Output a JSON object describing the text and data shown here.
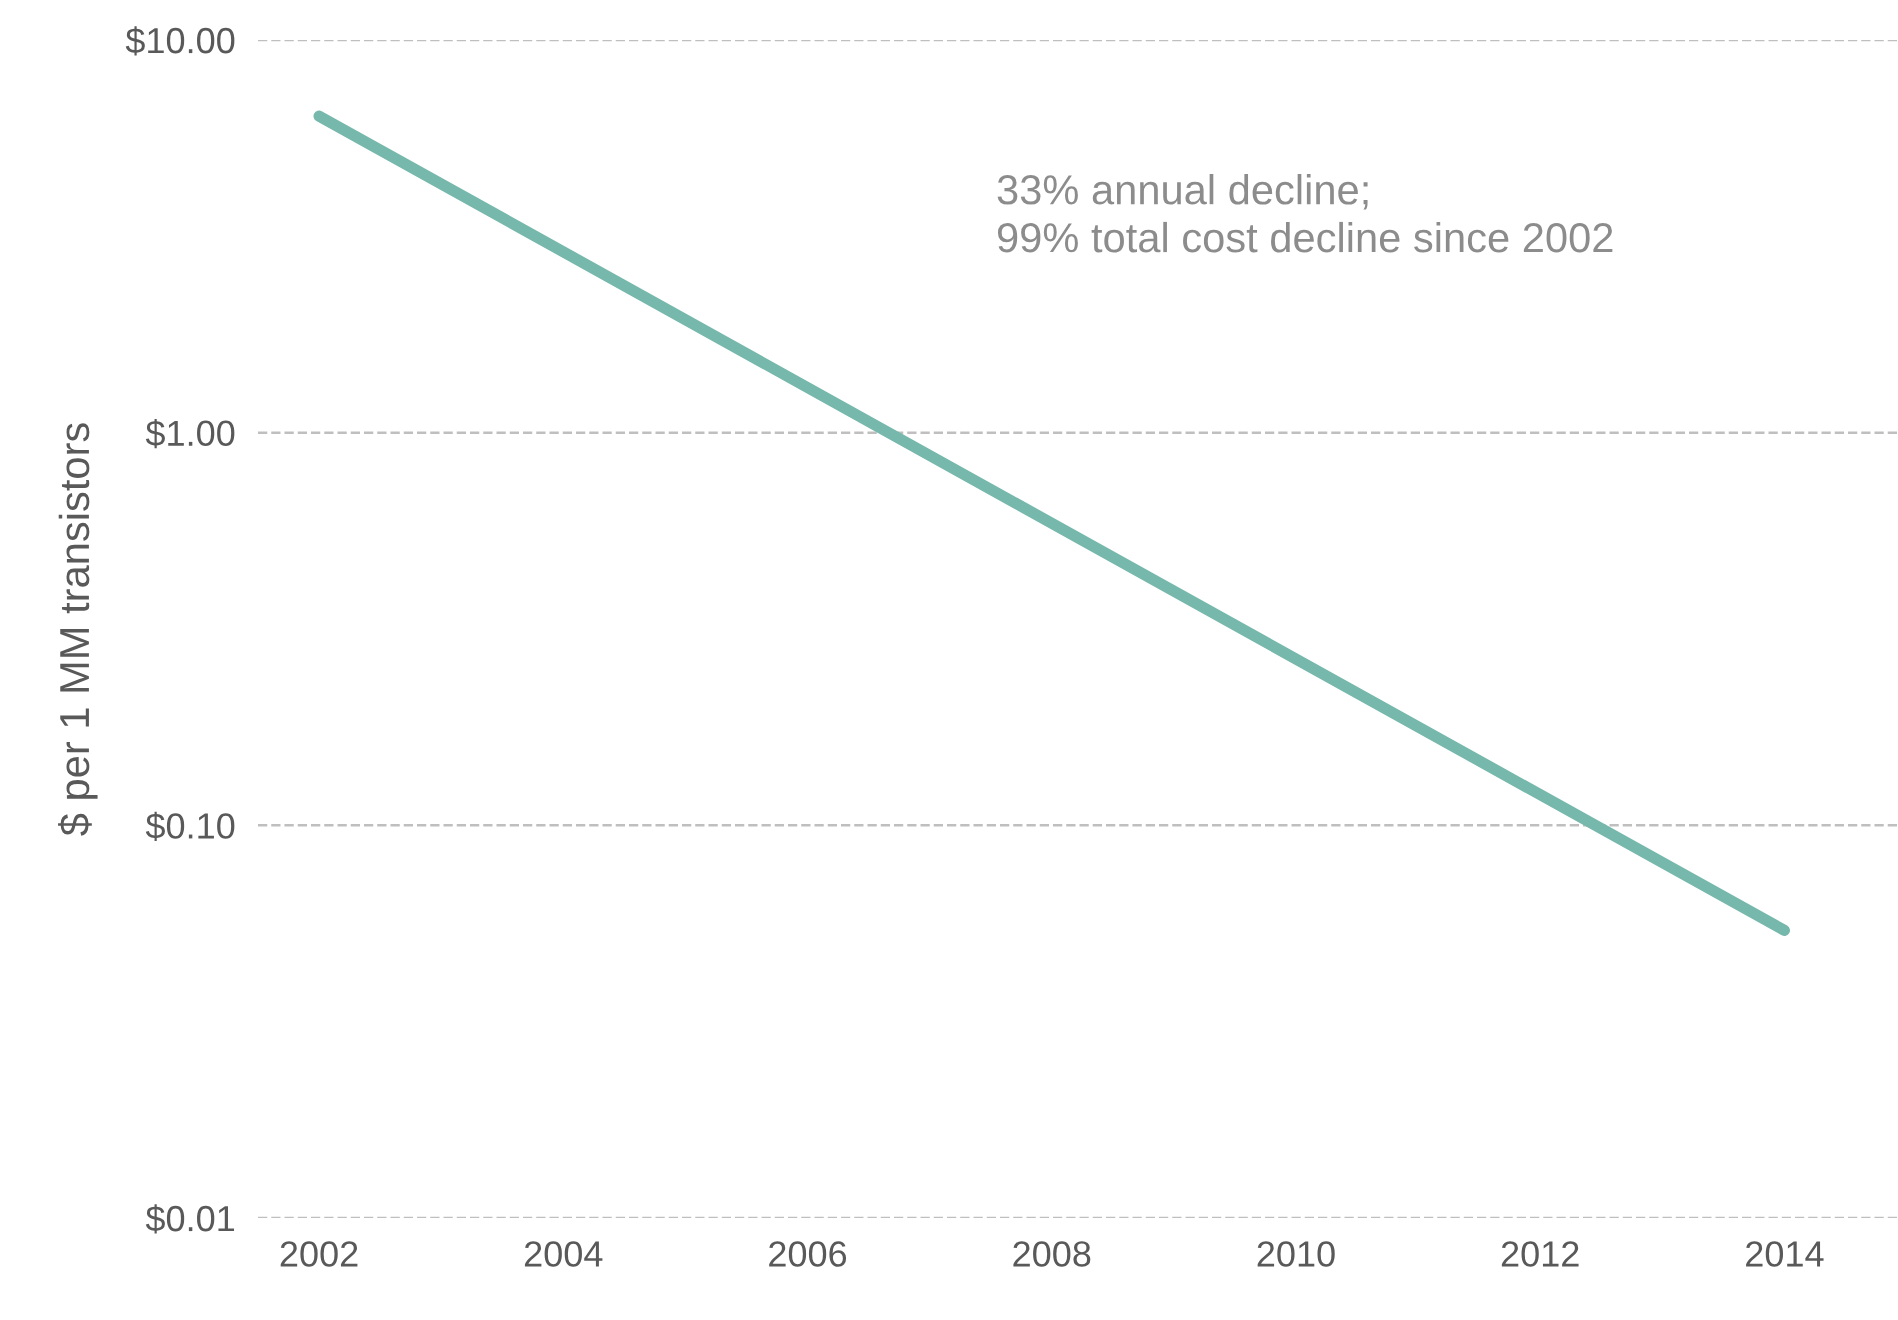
{
  "chart_data": {
    "type": "line",
    "ylabel": "$ per 1 MM transistors",
    "x": [
      2002,
      2014
    ],
    "series": [
      {
        "color": "#76b8ab",
        "values": [
          6.4,
          0.054
        ]
      }
    ],
    "log": "y",
    "ylim": [
      0.01,
      10
    ],
    "yticks": [
      {
        "value": 0.01,
        "label": "$0.01"
      },
      {
        "value": 0.1,
        "label": "$0.10"
      },
      {
        "value": 1,
        "label": "$1.00"
      },
      {
        "value": 10,
        "label": "$10.00"
      }
    ],
    "xlim": [
      2001.5,
      2014.93
    ],
    "xticks": [
      2002,
      2004,
      2006,
      2008,
      2010,
      2012,
      2014
    ],
    "grid": "y",
    "marker": "none",
    "line_style": "solid",
    "annotations": [
      "33% annual decline;\n99% total cost decline since 2002"
    ]
  }
}
